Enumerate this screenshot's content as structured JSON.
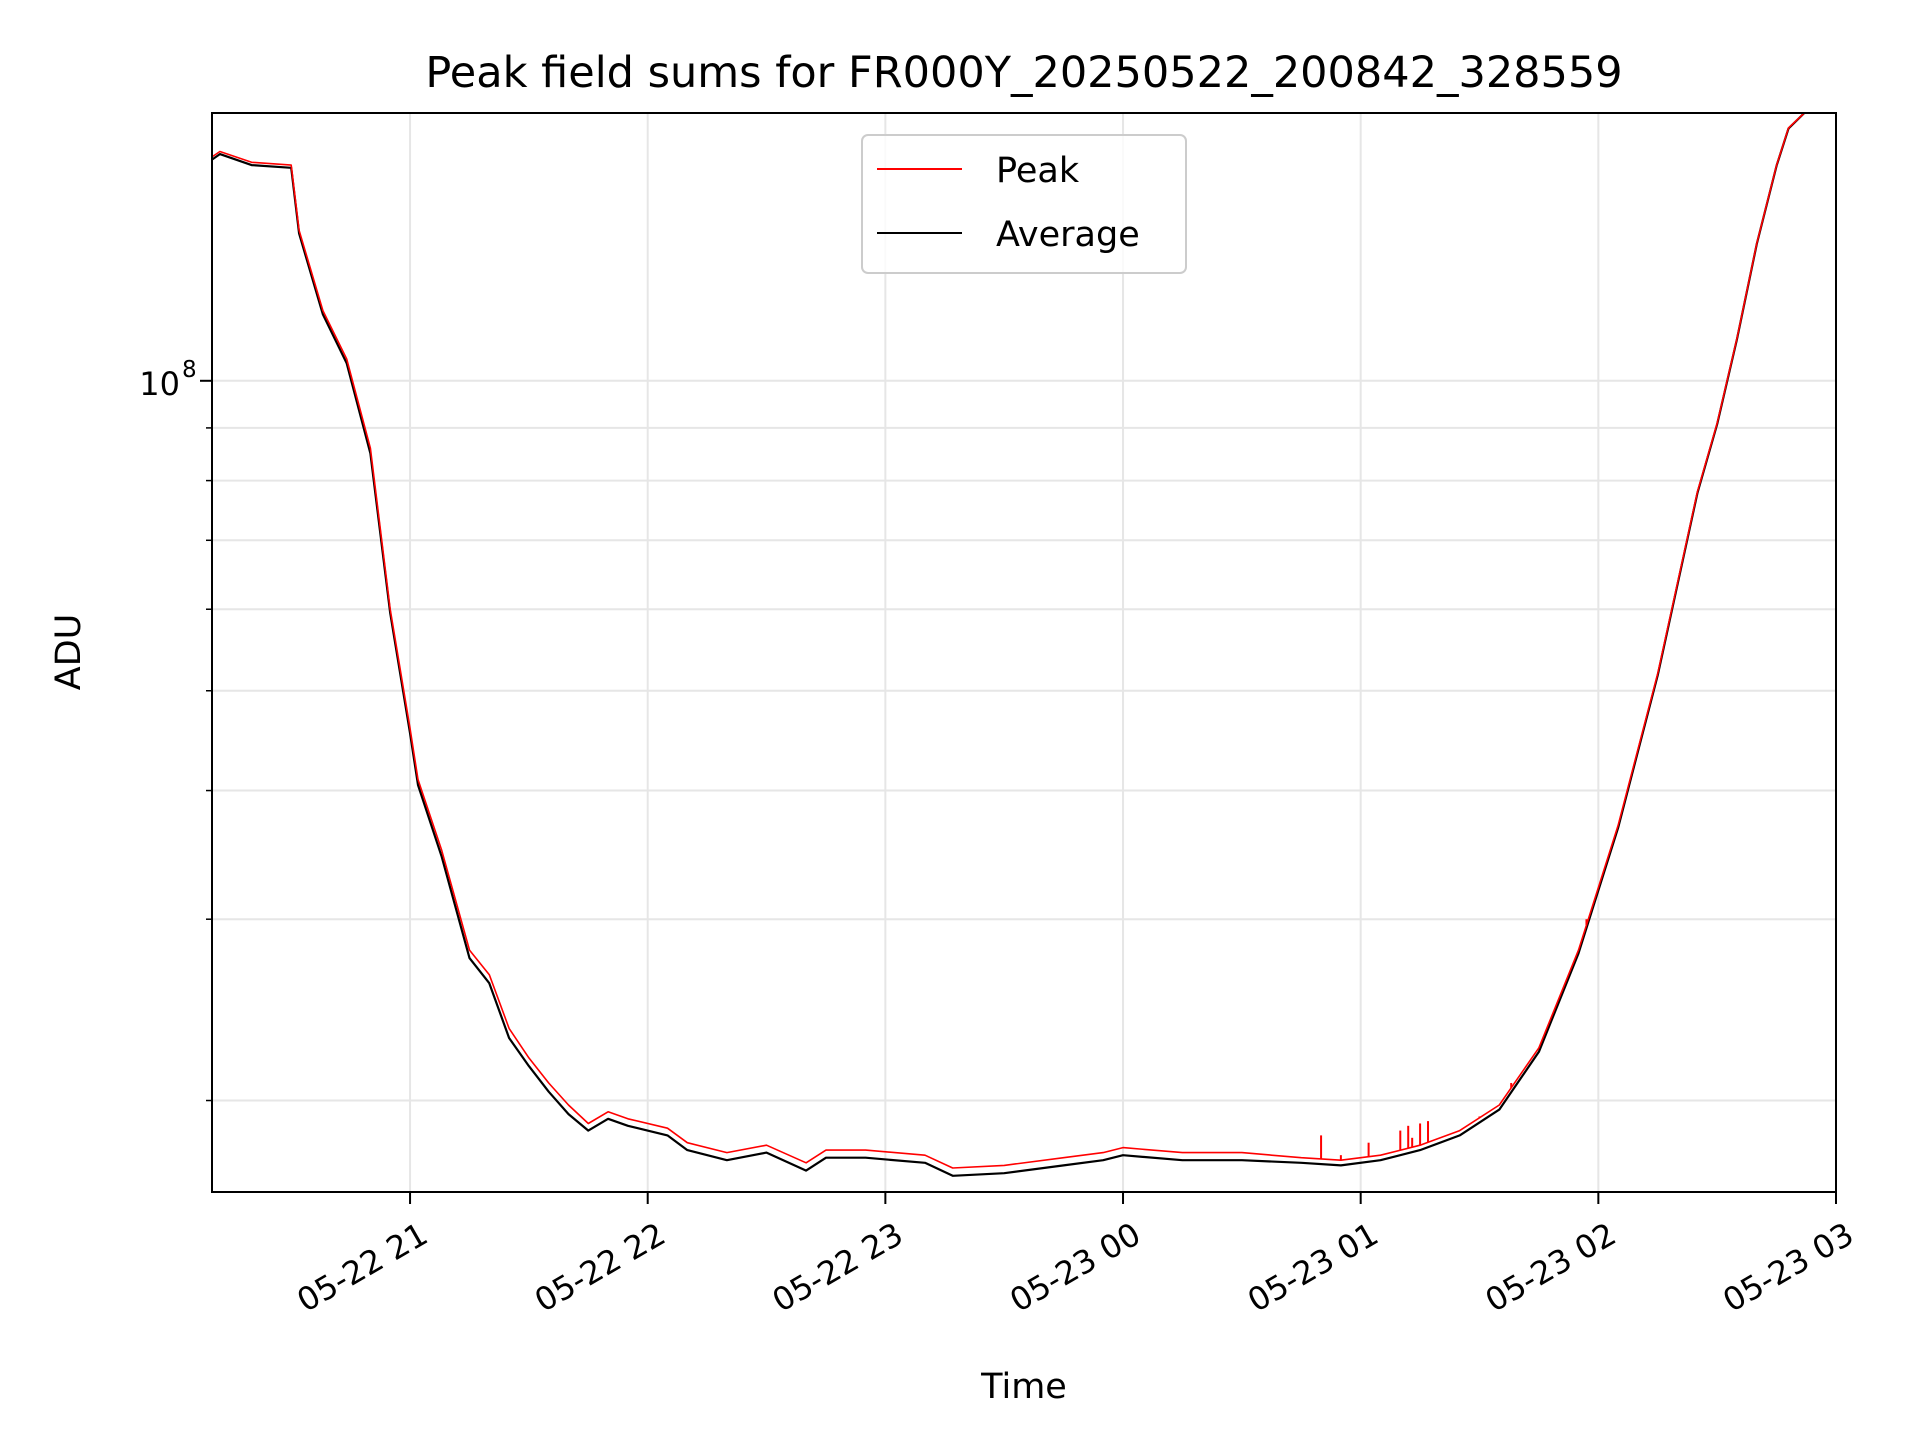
{
  "chart_data": {
    "type": "line",
    "title": "Peak field sums for FR000Y_20250522_200842_328559",
    "xlabel": "Time",
    "ylabel": "ADU",
    "y_scale": "log",
    "ylim": [
      16300000,
      182000000
    ],
    "xlim": [
      "2025-05-22 20:10",
      "2025-05-23 03:00"
    ],
    "x_ticks": [
      {
        "t": "2025-05-22 21:00",
        "label": "05-22 21"
      },
      {
        "t": "2025-05-22 22:00",
        "label": "05-22 22"
      },
      {
        "t": "2025-05-22 23:00",
        "label": "05-22 23"
      },
      {
        "t": "2025-05-23 00:00",
        "label": "05-23 00"
      },
      {
        "t": "2025-05-23 01:00",
        "label": "05-23 01"
      },
      {
        "t": "2025-05-23 02:00",
        "label": "05-23 02"
      },
      {
        "t": "2025-05-23 03:00",
        "label": "05-23 03"
      }
    ],
    "y_major_tick": {
      "value": 100000000,
      "label_base": "10",
      "label_exp": "8"
    },
    "y_minor_ticks": [
      20000000,
      30000000,
      40000000,
      50000000,
      60000000,
      70000000,
      80000000,
      90000000
    ],
    "grid": true,
    "legend_position": "upper center",
    "series": [
      {
        "name": "Peak",
        "color": "#ff0000",
        "points": [
          [
            "2025-05-22 20:10",
            165000000
          ],
          [
            "2025-05-22 20:12",
            167000000
          ],
          [
            "2025-05-22 20:20",
            163000000
          ],
          [
            "2025-05-22 20:30",
            162000000
          ],
          [
            "2025-05-22 20:32",
            140000000
          ],
          [
            "2025-05-22 20:38",
            117000000
          ],
          [
            "2025-05-22 20:44",
            105000000
          ],
          [
            "2025-05-22 20:50",
            86000000
          ],
          [
            "2025-05-22 20:55",
            60000000
          ],
          [
            "2025-05-22 21:00",
            46000000
          ],
          [
            "2025-05-22 21:02",
            41000000
          ],
          [
            "2025-05-22 21:08",
            35000000
          ],
          [
            "2025-05-22 21:15",
            28000000
          ],
          [
            "2025-05-22 21:20",
            26500000
          ],
          [
            "2025-05-22 21:25",
            23500000
          ],
          [
            "2025-05-22 21:30",
            22000000
          ],
          [
            "2025-05-22 21:35",
            20800000
          ],
          [
            "2025-05-22 21:40",
            19800000
          ],
          [
            "2025-05-22 21:45",
            19000000
          ],
          [
            "2025-05-22 21:50",
            19500000
          ],
          [
            "2025-05-22 21:55",
            19200000
          ],
          [
            "2025-05-22 22:05",
            18800000
          ],
          [
            "2025-05-22 22:10",
            18200000
          ],
          [
            "2025-05-22 22:20",
            17800000
          ],
          [
            "2025-05-22 22:30",
            18100000
          ],
          [
            "2025-05-22 22:40",
            17400000
          ],
          [
            "2025-05-22 22:45",
            17900000
          ],
          [
            "2025-05-22 22:55",
            17900000
          ],
          [
            "2025-05-22 23:10",
            17700000
          ],
          [
            "2025-05-22 23:17",
            17200000
          ],
          [
            "2025-05-22 23:30",
            17300000
          ],
          [
            "2025-05-22 23:45",
            17600000
          ],
          [
            "2025-05-22 23:55",
            17800000
          ],
          [
            "2025-05-23 00:00",
            18000000
          ],
          [
            "2025-05-23 00:15",
            17800000
          ],
          [
            "2025-05-23 00:30",
            17800000
          ],
          [
            "2025-05-23 00:45",
            17600000
          ],
          [
            "2025-05-23 00:55",
            17500000
          ],
          [
            "2025-05-23 01:05",
            17700000
          ],
          [
            "2025-05-23 01:15",
            18100000
          ],
          [
            "2025-05-23 01:25",
            18700000
          ],
          [
            "2025-05-23 01:35",
            19800000
          ],
          [
            "2025-05-23 01:45",
            22500000
          ],
          [
            "2025-05-23 01:55",
            28000000
          ],
          [
            "2025-05-23 02:05",
            37000000
          ],
          [
            "2025-05-23 02:15",
            52000000
          ],
          [
            "2025-05-23 02:25",
            78000000
          ],
          [
            "2025-05-23 02:30",
            91000000
          ],
          [
            "2025-05-23 02:35",
            110000000
          ],
          [
            "2025-05-23 02:40",
            136000000
          ],
          [
            "2025-05-23 02:45",
            162000000
          ],
          [
            "2025-05-23 02:48",
            176000000
          ],
          [
            "2025-05-23 02:52",
            182000000
          ]
        ],
        "spikes": [
          [
            "2025-05-23 00:50",
            18500000
          ],
          [
            "2025-05-23 00:55",
            17700000
          ],
          [
            "2025-05-23 01:02",
            18200000
          ],
          [
            "2025-05-23 01:10",
            18700000
          ],
          [
            "2025-05-23 01:12",
            18900000
          ],
          [
            "2025-05-23 01:13",
            18400000
          ],
          [
            "2025-05-23 01:15",
            19000000
          ],
          [
            "2025-05-23 01:17",
            19100000
          ],
          [
            "2025-05-23 01:30",
            19300000
          ],
          [
            "2025-05-23 01:38",
            20800000
          ],
          [
            "2025-05-23 01:57",
            30000000
          ]
        ]
      },
      {
        "name": "Average",
        "color": "#000000",
        "points": [
          [
            "2025-05-22 20:10",
            164000000
          ],
          [
            "2025-05-22 20:12",
            166000000
          ],
          [
            "2025-05-22 20:20",
            162000000
          ],
          [
            "2025-05-22 20:30",
            161000000
          ],
          [
            "2025-05-22 20:32",
            139000000
          ],
          [
            "2025-05-22 20:38",
            116000000
          ],
          [
            "2025-05-22 20:44",
            104000000
          ],
          [
            "2025-05-22 20:50",
            85000000
          ],
          [
            "2025-05-22 20:55",
            59500000
          ],
          [
            "2025-05-22 21:00",
            45500000
          ],
          [
            "2025-05-22 21:02",
            40500000
          ],
          [
            "2025-05-22 21:08",
            34500000
          ],
          [
            "2025-05-22 21:15",
            27500000
          ],
          [
            "2025-05-22 21:20",
            26000000
          ],
          [
            "2025-05-22 21:25",
            23000000
          ],
          [
            "2025-05-22 21:30",
            21600000
          ],
          [
            "2025-05-22 21:35",
            20400000
          ],
          [
            "2025-05-22 21:40",
            19400000
          ],
          [
            "2025-05-22 21:45",
            18700000
          ],
          [
            "2025-05-22 21:50",
            19200000
          ],
          [
            "2025-05-22 21:55",
            18900000
          ],
          [
            "2025-05-22 22:05",
            18500000
          ],
          [
            "2025-05-22 22:10",
            17900000
          ],
          [
            "2025-05-22 22:20",
            17500000
          ],
          [
            "2025-05-22 22:30",
            17800000
          ],
          [
            "2025-05-22 22:40",
            17100000
          ],
          [
            "2025-05-22 22:45",
            17600000
          ],
          [
            "2025-05-22 22:55",
            17600000
          ],
          [
            "2025-05-22 23:10",
            17400000
          ],
          [
            "2025-05-22 23:17",
            16900000
          ],
          [
            "2025-05-22 23:30",
            17000000
          ],
          [
            "2025-05-22 23:45",
            17300000
          ],
          [
            "2025-05-22 23:55",
            17500000
          ],
          [
            "2025-05-23 00:00",
            17700000
          ],
          [
            "2025-05-23 00:15",
            17500000
          ],
          [
            "2025-05-23 00:30",
            17500000
          ],
          [
            "2025-05-23 00:45",
            17400000
          ],
          [
            "2025-05-23 00:55",
            17300000
          ],
          [
            "2025-05-23 01:05",
            17500000
          ],
          [
            "2025-05-23 01:15",
            17900000
          ],
          [
            "2025-05-23 01:25",
            18500000
          ],
          [
            "2025-05-23 01:35",
            19600000
          ],
          [
            "2025-05-23 01:45",
            22300000
          ],
          [
            "2025-05-23 01:55",
            27800000
          ],
          [
            "2025-05-23 02:05",
            36800000
          ],
          [
            "2025-05-23 02:15",
            51800000
          ],
          [
            "2025-05-23 02:25",
            77800000
          ],
          [
            "2025-05-23 02:30",
            90800000
          ],
          [
            "2025-05-23 02:35",
            109800000
          ],
          [
            "2025-05-23 02:40",
            135800000
          ],
          [
            "2025-05-23 02:45",
            161800000
          ],
          [
            "2025-05-23 02:48",
            175800000
          ],
          [
            "2025-05-23 02:52",
            182000000
          ]
        ]
      }
    ]
  }
}
